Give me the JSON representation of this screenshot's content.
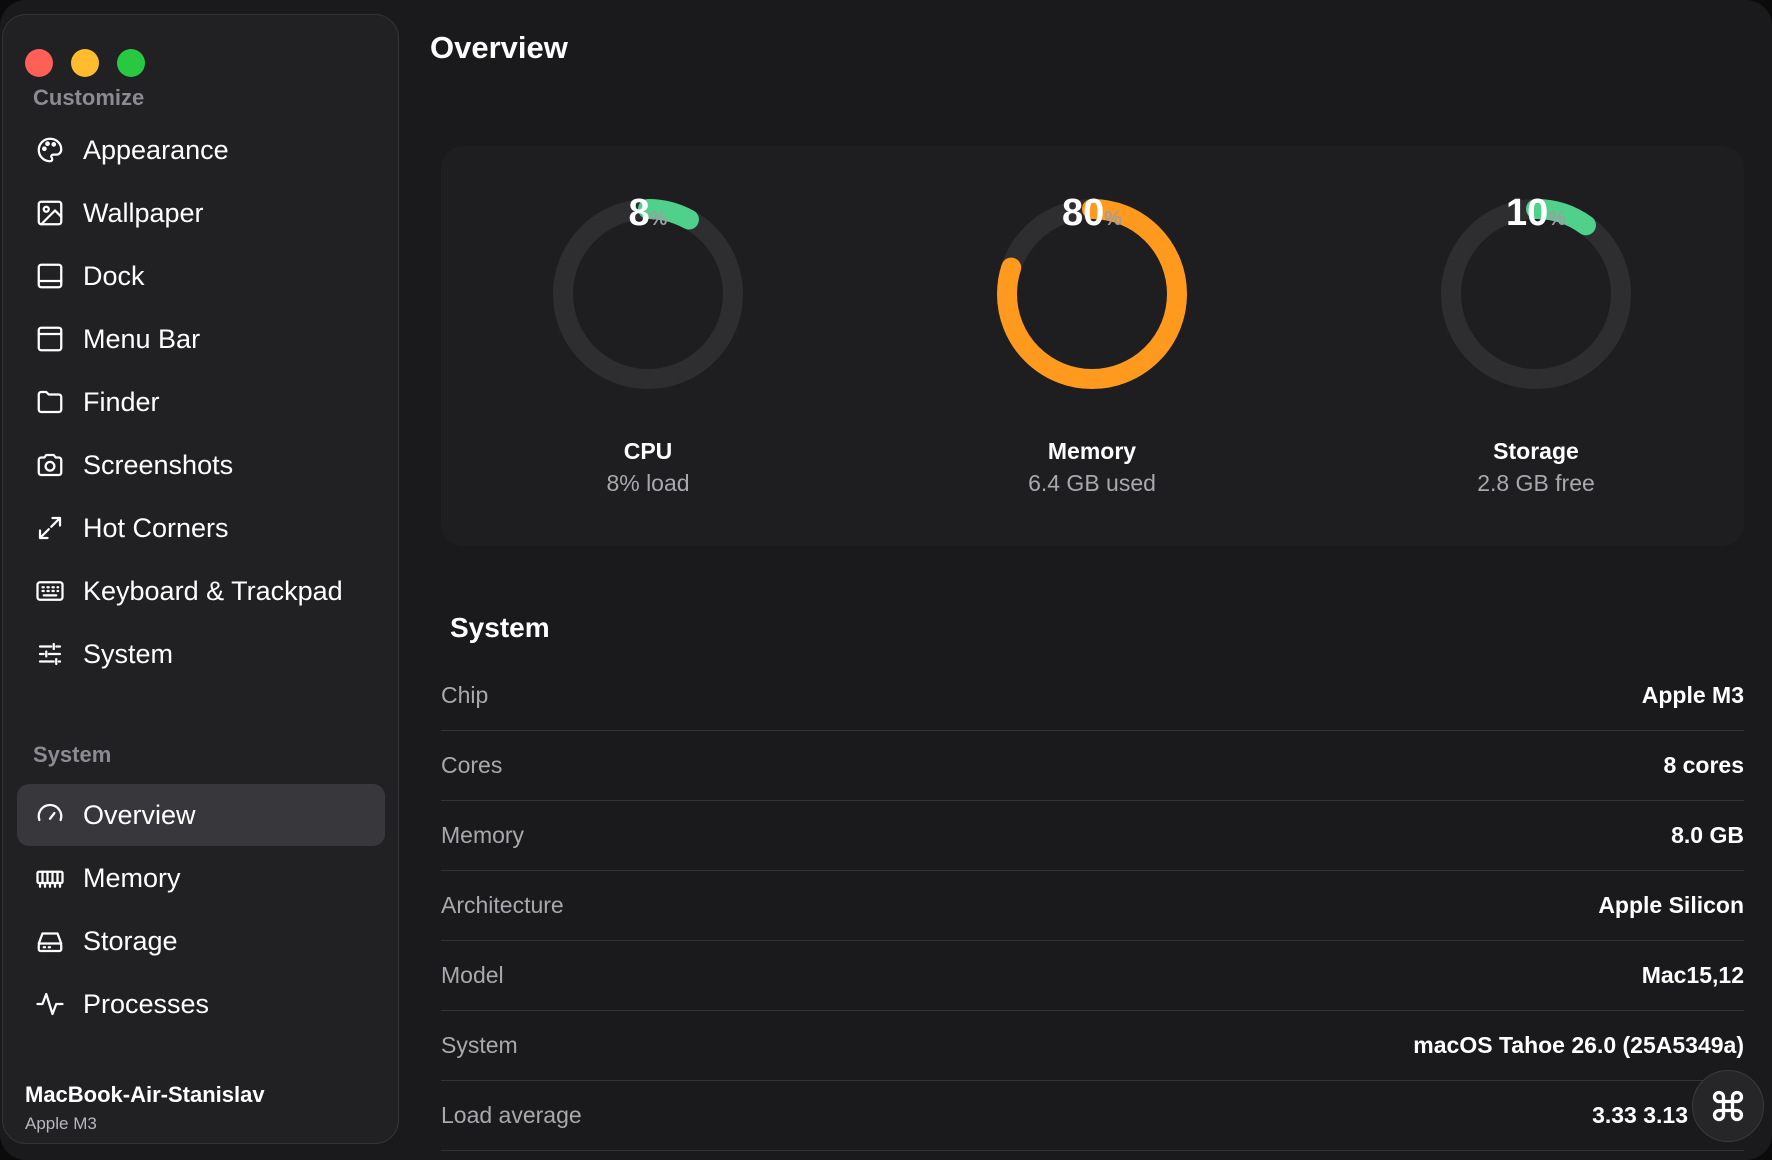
{
  "window": {
    "title": "Overview"
  },
  "sidebar": {
    "customize_label": "Customize",
    "customize_items": [
      {
        "label": "Appearance",
        "icon": "palette-icon"
      },
      {
        "label": "Wallpaper",
        "icon": "image-icon"
      },
      {
        "label": "Dock",
        "icon": "dock-icon"
      },
      {
        "label": "Menu Bar",
        "icon": "menubar-icon"
      },
      {
        "label": "Finder",
        "icon": "folder-icon"
      },
      {
        "label": "Screenshots",
        "icon": "camera-icon"
      },
      {
        "label": "Hot Corners",
        "icon": "expand-arrows-icon"
      },
      {
        "label": "Keyboard & Trackpad",
        "icon": "keyboard-icon"
      },
      {
        "label": "System",
        "icon": "sliders-icon"
      }
    ],
    "system_label": "System",
    "system_items": [
      {
        "label": "Overview",
        "icon": "gauge-icon",
        "active": true
      },
      {
        "label": "Memory",
        "icon": "memory-icon"
      },
      {
        "label": "Storage",
        "icon": "drive-icon"
      },
      {
        "label": "Processes",
        "icon": "activity-icon"
      }
    ],
    "device": {
      "name": "MacBook-Air-Stanislav",
      "chip": "Apple M3"
    }
  },
  "gauges": [
    {
      "value": "8",
      "unit": "%",
      "fraction": 0.08,
      "title": "CPU",
      "subtitle": "8% load",
      "color": "#4fd18b"
    },
    {
      "value": "80",
      "unit": "%",
      "fraction": 0.8,
      "title": "Memory",
      "subtitle": "6.4 GB used",
      "color": "#ff9a1f"
    },
    {
      "value": "10",
      "unit": "%",
      "fraction": 0.1,
      "title": "Storage",
      "subtitle": "2.8 GB free",
      "color": "#4fd18b"
    }
  ],
  "system": {
    "title": "System",
    "rows": [
      {
        "key": "Chip",
        "value": "Apple M3"
      },
      {
        "key": "Cores",
        "value": "8 cores"
      },
      {
        "key": "Memory",
        "value": "8.0 GB"
      },
      {
        "key": "Architecture",
        "value": "Apple Silicon"
      },
      {
        "key": "Model",
        "value": "Mac15,12"
      },
      {
        "key": "System",
        "value": "macOS Tahoe 26.0 (25A5349a)"
      },
      {
        "key": "Load average",
        "value": "3.33 3.13"
      }
    ]
  },
  "colors": {
    "track": "#2e2e31",
    "green": "#4fd18b",
    "orange": "#ff9a1f"
  }
}
